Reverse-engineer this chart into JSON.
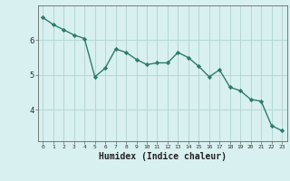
{
  "x": [
    0,
    1,
    2,
    3,
    4,
    5,
    6,
    7,
    8,
    9,
    10,
    11,
    12,
    13,
    14,
    15,
    16,
    17,
    18,
    19,
    20,
    21,
    22,
    23
  ],
  "y": [
    6.65,
    6.45,
    6.3,
    6.15,
    6.05,
    4.95,
    5.2,
    5.75,
    5.65,
    5.45,
    5.3,
    5.35,
    5.35,
    5.65,
    5.5,
    5.25,
    4.95,
    5.15,
    4.65,
    4.55,
    4.3,
    4.25,
    3.55,
    3.4
  ],
  "line_color": "#2e7b6e",
  "marker": "D",
  "marker_size": 2.2,
  "bg_color": "#d8f0ef",
  "grid_color": "#afd4d0",
  "axis_color": "#666666",
  "xlabel": "Humidex (Indice chaleur)",
  "xlabel_fontsize": 7,
  "ylabel_ticks": [
    4,
    5,
    6
  ],
  "xlim": [
    -0.5,
    23.5
  ],
  "ylim": [
    3.1,
    7.0
  ],
  "title": ""
}
